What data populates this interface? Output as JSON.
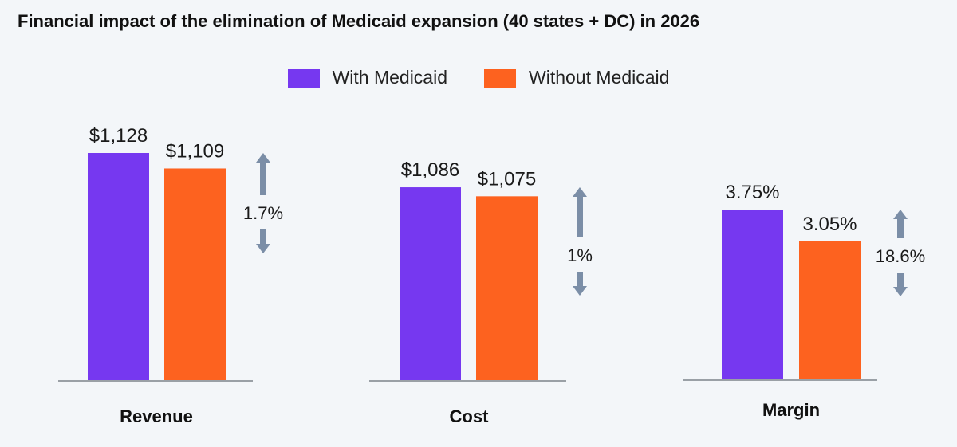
{
  "chart_data": {
    "type": "bar",
    "title": "Financial impact of the elimination of Medicaid expansion (40 states + DC) in 2026",
    "colors": {
      "with": "#7638f0",
      "without": "#fd621f",
      "arrow": "#7b8ea7",
      "axis": "#9aa0a6"
    },
    "legend": [
      {
        "name": "With Medicaid",
        "color": "#7638f0"
      },
      {
        "name": "Without Medicaid",
        "color": "#fd621f"
      }
    ],
    "groups": [
      {
        "category": "Revenue",
        "values": [
          1128,
          1109
        ],
        "labels": [
          "$1,128",
          "$1,109"
        ],
        "change_label": "1.7%"
      },
      {
        "category": "Cost",
        "values": [
          1086,
          1075
        ],
        "labels": [
          "$1,086",
          "$1,075"
        ],
        "change_label": "1%"
      },
      {
        "category": "Margin",
        "values": [
          3.75,
          3.05
        ],
        "labels": [
          "3.75%",
          "3.05%"
        ],
        "change_label": "18.6%"
      }
    ],
    "grid": false,
    "legend_position": "top-center"
  }
}
